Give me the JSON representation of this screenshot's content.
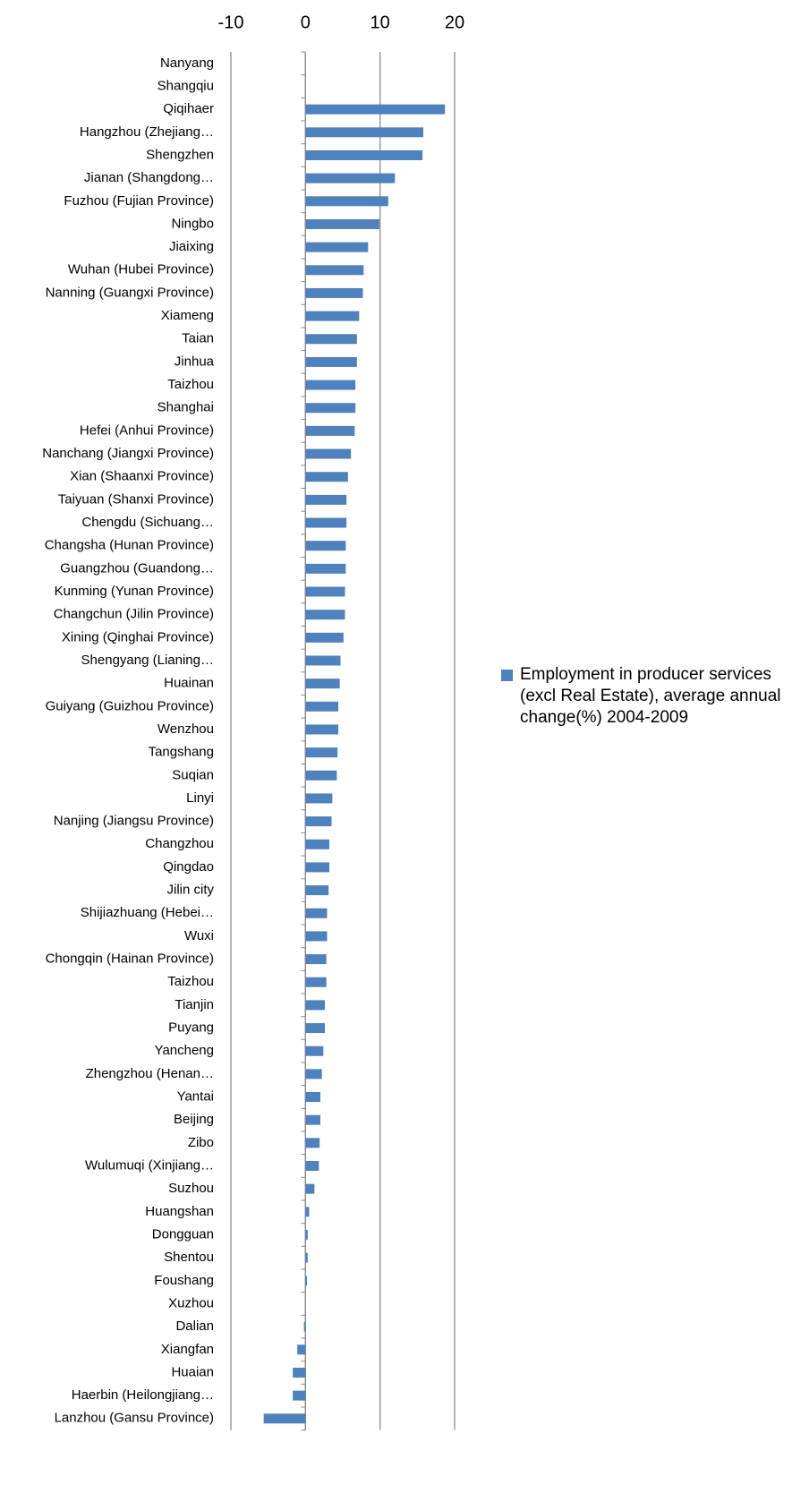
{
  "chart_data": {
    "type": "barh",
    "categories": [
      "Nanyang",
      "Shangqiu",
      "Qiqihaer",
      "Hangzhou (Zhejiang…",
      "Shengzhen",
      "Jianan (Shangdong…",
      "Fuzhou (Fujian Province)",
      "Ningbo",
      "Jiaixing",
      "Wuhan (Hubei Province)",
      "Nanning (Guangxi Province)",
      "Xiameng",
      "Taian",
      "Jinhua",
      "Taizhou",
      "Shanghai",
      "Hefei (Anhui Province)",
      "Nanchang (Jiangxi Province)",
      "Xian (Shaanxi Province)",
      "Taiyuan (Shanxi Province)",
      "Chengdu (Sichuang…",
      "Changsha (Hunan Province)",
      "Guangzhou (Guandong…",
      "Kunming (Yunan Province)",
      "Changchun (Jilin Province)",
      "Xining (Qinghai Province)",
      "Shengyang (Lianing…",
      "Huainan",
      "Guiyang (Guizhou Province)",
      "Wenzhou",
      "Tangshang",
      "Suqian",
      "Linyi",
      "Nanjing (Jiangsu Province)",
      "Changzhou",
      "Qingdao",
      "Jilin city",
      "Shijiazhuang (Hebei…",
      "Wuxi",
      "Chongqin (Hainan Province)",
      "Taizhou",
      "Tianjin",
      "Puyang",
      "Yancheng",
      "Zhengzhou (Henan…",
      "Yantai",
      "Beijing",
      "Zibo",
      "Wulumuqi (Xinjiang…",
      "Suzhou",
      "Huangshan",
      "Dongguan",
      "Shentou",
      "Foushang",
      "Xuzhou",
      "Dalian",
      "Xiangfan",
      "Huaian",
      "Haerbin (Heilongjiang…",
      "Lanzhou (Gansu Province)"
    ],
    "series": [
      {
        "name": "Employment in producer services (excl Real Estate), average annual change(%) 2004-2009",
        "color": "#4f81bd",
        "values": [
          0,
          0,
          18.7,
          15.8,
          15.7,
          12.0,
          11.1,
          9.9,
          8.4,
          7.8,
          7.7,
          7.2,
          6.9,
          6.9,
          6.7,
          6.7,
          6.6,
          6.1,
          5.7,
          5.5,
          5.5,
          5.4,
          5.4,
          5.3,
          5.3,
          5.1,
          4.7,
          4.6,
          4.4,
          4.4,
          4.3,
          4.2,
          3.6,
          3.5,
          3.2,
          3.2,
          3.1,
          2.9,
          2.9,
          2.8,
          2.8,
          2.6,
          2.6,
          2.4,
          2.2,
          2.0,
          2.0,
          1.9,
          1.8,
          1.2,
          0.5,
          0.3,
          0.3,
          0.2,
          0,
          -0.2,
          -1.1,
          -1.7,
          -1.7,
          -5.6
        ]
      }
    ],
    "xlim": [
      -10,
      20
    ],
    "xticks": [
      -10,
      0,
      10,
      20
    ],
    "grid": true,
    "legend": "right"
  }
}
